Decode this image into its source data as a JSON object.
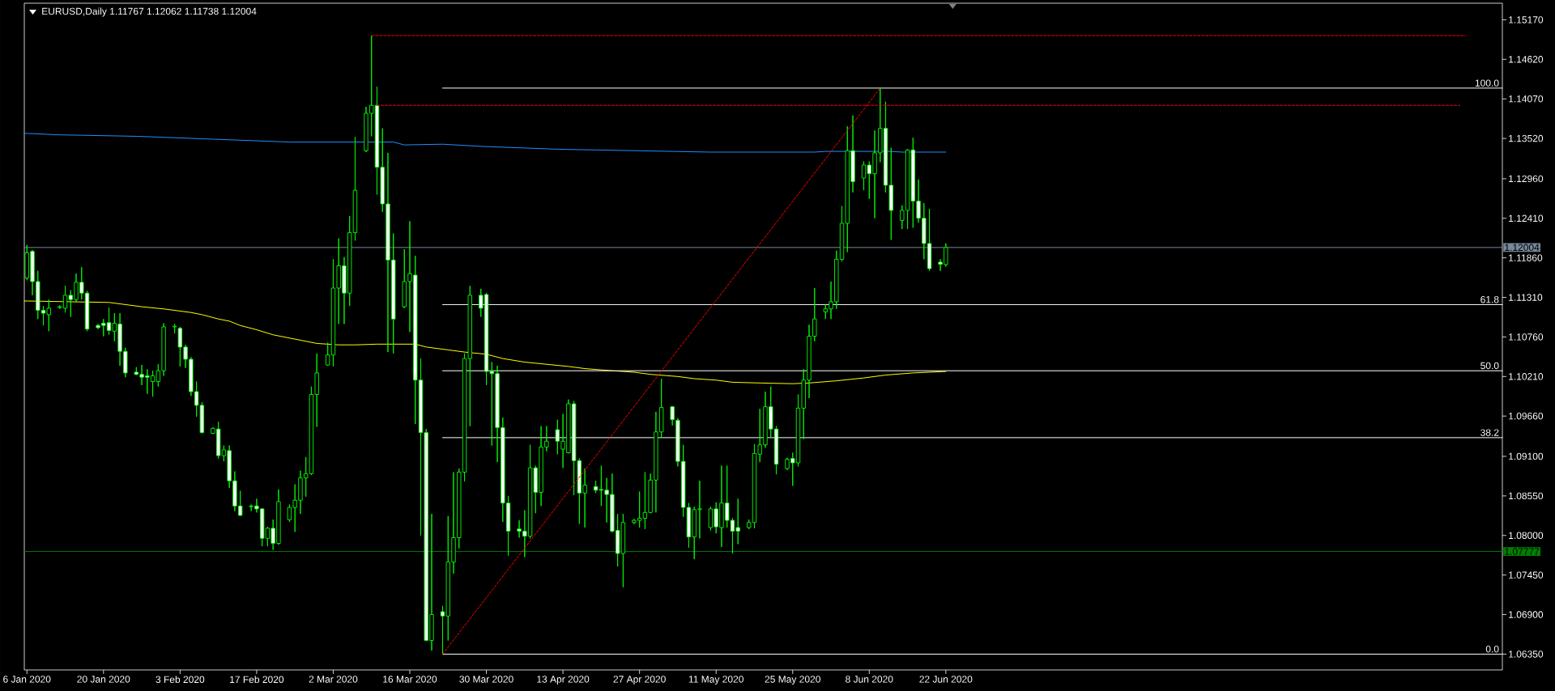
{
  "chart_data": {
    "type": "candlestick",
    "title": "EURUSD,Daily  1.11767 1.12062 1.11738 1.12004",
    "legend": "right",
    "xlim": [
      "2020-01-05T12:30",
      "2020-10-01T18:00"
    ],
    "ylim": [
      1.0613,
      1.154
    ],
    "xticks": [
      {
        "value": "2020-01-06",
        "label": "6 Jan 2020"
      },
      {
        "value": "2020-01-20",
        "label": "20 Jan 2020"
      },
      {
        "value": "2020-02-03",
        "label": "3 Feb 2020"
      },
      {
        "value": "2020-02-17",
        "label": "17 Feb 2020"
      },
      {
        "value": "2020-03-02",
        "label": "2 Mar 2020"
      },
      {
        "value": "2020-03-16",
        "label": "16 Mar 2020"
      },
      {
        "value": "2020-03-30",
        "label": "30 Mar 2020"
      },
      {
        "value": "2020-04-13",
        "label": "13 Apr 2020"
      },
      {
        "value": "2020-04-27",
        "label": "27 Apr 2020"
      },
      {
        "value": "2020-05-11",
        "label": "11 May 2020"
      },
      {
        "value": "2020-05-25",
        "label": "25 May 2020"
      },
      {
        "value": "2020-06-08",
        "label": "8 Jun 2020"
      },
      {
        "value": "2020-06-22",
        "label": "22 Jun 2020"
      }
    ],
    "yticks": [
      {
        "value": 1.1517,
        "label": "1.15170"
      },
      {
        "value": 1.1462,
        "label": "1.14620"
      },
      {
        "value": 1.1407,
        "label": "1.14070"
      },
      {
        "value": 1.1352,
        "label": "1.13520"
      },
      {
        "value": 1.1296,
        "label": "1.12960"
      },
      {
        "value": 1.1241,
        "label": "1.12410"
      },
      {
        "value": 1.1186,
        "label": "1.11860"
      },
      {
        "value": 1.1131,
        "label": "1.11310"
      },
      {
        "value": 1.1076,
        "label": "1.10760"
      },
      {
        "value": 1.1021,
        "label": "1.10210"
      },
      {
        "value": 1.0966,
        "label": "1.09660"
      },
      {
        "value": 1.091,
        "label": "1.09100"
      },
      {
        "value": 1.0855,
        "label": "1.08550"
      },
      {
        "value": 1.08,
        "label": "1.08000"
      },
      {
        "value": 1.0745,
        "label": "1.07450"
      },
      {
        "value": 1.069,
        "label": "1.06900"
      },
      {
        "value": 1.0635,
        "label": "1.06350"
      }
    ],
    "ref_lines": [
      {
        "axis": "y",
        "value": 1.12004,
        "label": "1.12004",
        "color": "#778899"
      },
      {
        "axis": "y",
        "value": 1.07777,
        "label": "1.07777",
        "color": "#008000"
      }
    ],
    "series": [
      {
        "type": "line",
        "color": "#1e90ff",
        "x": [
          "2020-01-05T12:30",
          "2020-01-06",
          "2020-01-12",
          "2020-01-26",
          "2020-02-02",
          "2020-02-09",
          "2020-02-16",
          "2020-02-23",
          "2020-03-13",
          "2020-03-15",
          "2020-03-22",
          "2020-03-29",
          "2020-04-05",
          "2020-04-12",
          "2020-04-19",
          "2020-04-26",
          "2020-05-03",
          "2020-05-10",
          "2020-05-29",
          "2020-05-31",
          "2020-06-12",
          "2020-06-14",
          "2020-06-22"
        ],
        "values": [
          1.1359,
          1.1359,
          1.1357,
          1.1355,
          1.1353,
          1.1351,
          1.1349,
          1.1347,
          1.1347,
          1.1343,
          1.1344,
          1.1341,
          1.1339,
          1.1337,
          1.1336,
          1.1335,
          1.1334,
          1.1333,
          1.1333,
          1.1334,
          1.1334,
          1.1333,
          1.1333
        ]
      },
      {
        "type": "line",
        "color": "#ffff00",
        "x": [
          "2020-01-05T12:30",
          "2020-01-06",
          "2020-01-21",
          "2020-01-23",
          "2020-01-27",
          "2020-01-31",
          "2020-02-05",
          "2020-02-07",
          "2020-02-10",
          "2020-02-12",
          "2020-02-14",
          "2020-02-17",
          "2020-02-20",
          "2020-02-24",
          "2020-02-28",
          "2020-03-03",
          "2020-03-06",
          "2020-03-10",
          "2020-03-17",
          "2020-03-19",
          "2020-03-23",
          "2020-03-26",
          "2020-03-30",
          "2020-04-02",
          "2020-04-06",
          "2020-04-10",
          "2020-04-14",
          "2020-04-17",
          "2020-04-22",
          "2020-04-26",
          "2020-04-29",
          "2020-05-04",
          "2020-05-07",
          "2020-05-11",
          "2020-05-14",
          "2020-05-19",
          "2020-05-25",
          "2020-05-28",
          "2020-06-02",
          "2020-06-07",
          "2020-06-11",
          "2020-06-16",
          "2020-06-19",
          "2020-06-22"
        ],
        "values": [
          1.1126,
          1.1126,
          1.1124,
          1.1122,
          1.1118,
          1.1115,
          1.111,
          1.1107,
          1.1101,
          1.1098,
          1.1092,
          1.1086,
          1.1079,
          1.1073,
          1.1067,
          1.1065,
          1.1065,
          1.1066,
          1.1066,
          1.1062,
          1.1058,
          1.1055,
          1.1052,
          1.1046,
          1.1041,
          1.1038,
          1.1035,
          1.1032,
          1.1029,
          1.1027,
          1.1024,
          1.1021,
          1.1018,
          1.1016,
          1.1013,
          1.1012,
          1.1011,
          1.1012,
          1.1015,
          1.1019,
          1.1023,
          1.1026,
          1.1027,
          1.1028
        ]
      },
      {
        "type": "line",
        "color": "#ff0000",
        "line_style": "dashed",
        "x": [
          "2020-03-22",
          "2020-06-10"
        ],
        "values": [
          1.0635,
          1.1422
        ]
      },
      {
        "type": "line",
        "color": "#ff0000",
        "line_style": "dashed",
        "x": [
          "2020-03-09",
          "2020-09-25"
        ],
        "values": [
          1.1495,
          1.1495
        ]
      },
      {
        "type": "line",
        "color": "#ff0000",
        "line_style": "dashed",
        "x": [
          "2020-03-10",
          "2020-09-24"
        ],
        "values": [
          1.1398,
          1.1398
        ]
      },
      {
        "type": "line",
        "name": "100.0",
        "color": "#ffffff",
        "x": [
          "2020-03-22",
          "2020-10-01T18:00"
        ],
        "values": [
          1.1422,
          1.1422
        ]
      },
      {
        "type": "line",
        "name": "61.8",
        "color": "#ffffff",
        "x": [
          "2020-03-22",
          "2020-10-01T18:00"
        ],
        "values": [
          1.1121,
          1.1121
        ]
      },
      {
        "type": "line",
        "name": "50.0",
        "color": "#ffffff",
        "x": [
          "2020-03-22",
          "2020-10-01T18:00"
        ],
        "values": [
          1.1029,
          1.1029
        ]
      },
      {
        "type": "line",
        "name": "38.2",
        "color": "#ffffff",
        "x": [
          "2020-03-22",
          "2020-10-01T18:00"
        ],
        "values": [
          1.0936,
          1.0936
        ]
      },
      {
        "type": "line",
        "name": "0.0",
        "color": "#ffffff",
        "x": [
          "2020-03-22",
          "2020-10-01T18:00"
        ],
        "values": [
          1.0635,
          1.0635
        ]
      },
      {
        "color": "#00ff00",
        "x": [
          "2020-01-06",
          "2020-01-07",
          "2020-01-08",
          "2020-01-09",
          "2020-01-10",
          "2020-01-12",
          "2020-01-13",
          "2020-01-14",
          "2020-01-15",
          "2020-01-16",
          "2020-01-17",
          "2020-01-19",
          "2020-01-20",
          "2020-01-21",
          "2020-01-22",
          "2020-01-23",
          "2020-01-24",
          "2020-01-26",
          "2020-01-27",
          "2020-01-28",
          "2020-01-29",
          "2020-01-30",
          "2020-01-31",
          "2020-02-02",
          "2020-02-03",
          "2020-02-04",
          "2020-02-05",
          "2020-02-06",
          "2020-02-07",
          "2020-02-09",
          "2020-02-10",
          "2020-02-11",
          "2020-02-12",
          "2020-02-13",
          "2020-02-14",
          "2020-02-16",
          "2020-02-17",
          "2020-02-18",
          "2020-02-19",
          "2020-02-20",
          "2020-02-21",
          "2020-02-23",
          "2020-02-24",
          "2020-02-25",
          "2020-02-26",
          "2020-02-27",
          "2020-02-28",
          "2020-03-01",
          "2020-03-02",
          "2020-03-03",
          "2020-03-04",
          "2020-03-05",
          "2020-03-06",
          "2020-03-08",
          "2020-03-09",
          "2020-03-10",
          "2020-03-11",
          "2020-03-12",
          "2020-03-13",
          "2020-03-15",
          "2020-03-16",
          "2020-03-17",
          "2020-03-18",
          "2020-03-19",
          "2020-03-20",
          "2020-03-22",
          "2020-03-23",
          "2020-03-24",
          "2020-03-25",
          "2020-03-26",
          "2020-03-27",
          "2020-03-29",
          "2020-03-30",
          "2020-03-31",
          "2020-04-01",
          "2020-04-02",
          "2020-04-03",
          "2020-04-05",
          "2020-04-06",
          "2020-04-07",
          "2020-04-08",
          "2020-04-09",
          "2020-04-10",
          "2020-04-12",
          "2020-04-13",
          "2020-04-14",
          "2020-04-15",
          "2020-04-16",
          "2020-04-17",
          "2020-04-19",
          "2020-04-20",
          "2020-04-21",
          "2020-04-22",
          "2020-04-23",
          "2020-04-24",
          "2020-04-26",
          "2020-04-27",
          "2020-04-28",
          "2020-04-29",
          "2020-04-30",
          "2020-05-01",
          "2020-05-03",
          "2020-05-04",
          "2020-05-05",
          "2020-05-06",
          "2020-05-07",
          "2020-05-08",
          "2020-05-10",
          "2020-05-11",
          "2020-05-12",
          "2020-05-13",
          "2020-05-14",
          "2020-05-15",
          "2020-05-17",
          "2020-05-18",
          "2020-05-19",
          "2020-05-20",
          "2020-05-21",
          "2020-05-22",
          "2020-05-24",
          "2020-05-25",
          "2020-05-26",
          "2020-05-27",
          "2020-05-28",
          "2020-05-29",
          "2020-05-31",
          "2020-06-01",
          "2020-06-02",
          "2020-06-03",
          "2020-06-04",
          "2020-06-05",
          "2020-06-07",
          "2020-06-08",
          "2020-06-09",
          "2020-06-10",
          "2020-06-11",
          "2020-06-12",
          "2020-06-14",
          "2020-06-15",
          "2020-06-16",
          "2020-06-17",
          "2020-06-18",
          "2020-06-19",
          "2020-06-21",
          "2020-06-22"
        ],
        "ohlc": [
          [
            1.1158,
            1.1204,
            1.1155,
            1.1193
          ],
          [
            1.1195,
            1.1197,
            1.1134,
            1.1153
          ],
          [
            1.1153,
            1.1168,
            1.1101,
            1.1113
          ],
          [
            1.1113,
            1.1119,
            1.1092,
            1.1109
          ],
          [
            1.1107,
            1.1128,
            1.1084,
            1.1116
          ],
          [
            1.1117,
            1.112,
            1.1115,
            1.1118
          ],
          [
            1.1116,
            1.1147,
            1.111,
            1.1134
          ],
          [
            1.1134,
            1.1141,
            1.1104,
            1.1128
          ],
          [
            1.1128,
            1.1164,
            1.1125,
            1.1152
          ],
          [
            1.1152,
            1.1173,
            1.1128,
            1.1137
          ],
          [
            1.1137,
            1.114,
            1.1084,
            1.1087
          ],
          [
            1.1092,
            1.1094,
            1.1087,
            1.1089
          ],
          [
            1.1095,
            1.1101,
            1.1077,
            1.1092
          ],
          [
            1.1096,
            1.1117,
            1.1079,
            1.1085
          ],
          [
            1.1084,
            1.1109,
            1.107,
            1.1095
          ],
          [
            1.1094,
            1.1109,
            1.1036,
            1.1056
          ],
          [
            1.1056,
            1.1061,
            1.102,
            1.1026
          ],
          [
            1.1027,
            1.1034,
            1.1023,
            1.1024
          ],
          [
            1.1024,
            1.1037,
            1.1009,
            1.102
          ],
          [
            1.1022,
            1.1031,
            1.0997,
            1.102
          ],
          [
            1.1014,
            1.1029,
            1.0993,
            1.1022
          ],
          [
            1.1014,
            1.1038,
            1.1007,
            1.1029
          ],
          [
            1.1029,
            1.1095,
            1.1022,
            1.109
          ],
          [
            1.109,
            1.1094,
            1.1081,
            1.1091
          ],
          [
            1.1088,
            1.109,
            1.1035,
            1.1062
          ],
          [
            1.1062,
            1.1065,
            1.1033,
            1.1045
          ],
          [
            1.1045,
            1.1048,
            1.0994,
            1.1
          ],
          [
            1.1,
            1.1014,
            1.0965,
            1.0981
          ],
          [
            1.0981,
            1.0985,
            1.0942,
            1.0943
          ],
          [
            1.0942,
            1.095,
            1.0941,
            1.0949
          ],
          [
            1.0948,
            1.0958,
            1.0907,
            1.0911
          ],
          [
            1.0911,
            1.0925,
            1.0903,
            1.0919
          ],
          [
            1.0918,
            1.0925,
            1.0866,
            1.0876
          ],
          [
            1.0876,
            1.0889,
            1.0834,
            1.0841
          ],
          [
            1.0841,
            1.0862,
            1.0827,
            1.0828
          ],
          [
            1.084,
            1.0843,
            1.0834,
            1.0841
          ],
          [
            1.0841,
            1.0851,
            1.0832,
            1.0837
          ],
          [
            1.0837,
            1.0838,
            1.0785,
            1.0796
          ],
          [
            1.0796,
            1.0812,
            1.0785,
            1.081
          ],
          [
            1.081,
            1.0822,
            1.078,
            1.0789
          ],
          [
            1.0789,
            1.0864,
            1.0787,
            1.0847
          ],
          [
            1.0822,
            1.0843,
            1.0819,
            1.0839
          ],
          [
            1.0839,
            1.0871,
            1.0805,
            1.0849
          ],
          [
            1.0849,
            1.089,
            1.083,
            1.088
          ],
          [
            1.088,
            1.0909,
            1.0854,
            1.0886
          ],
          [
            1.0886,
            1.1007,
            1.0884,
            1.0996
          ],
          [
            1.0996,
            1.1053,
            1.0951,
            1.1026
          ],
          [
            1.1037,
            1.1068,
            1.1036,
            1.1051
          ],
          [
            1.1051,
            1.1184,
            1.1035,
            1.1144
          ],
          [
            1.1144,
            1.1213,
            1.1094,
            1.1175
          ],
          [
            1.1175,
            1.1187,
            1.1094,
            1.1137
          ],
          [
            1.1137,
            1.1244,
            1.1119,
            1.1221
          ],
          [
            1.1221,
            1.1354,
            1.121,
            1.128
          ],
          [
            1.1335,
            1.1396,
            1.1333,
            1.1387
          ],
          [
            1.1387,
            1.1495,
            1.1355,
            1.1398
          ],
          [
            1.1398,
            1.1424,
            1.1274,
            1.1312
          ],
          [
            1.1312,
            1.1366,
            1.125,
            1.1261
          ],
          [
            1.1261,
            1.1332,
            1.1055,
            1.1183
          ],
          [
            1.1183,
            1.122,
            1.1053,
            1.1101
          ],
          [
            1.1118,
            1.1198,
            1.1116,
            1.1153
          ],
          [
            1.1153,
            1.1237,
            1.1083,
            1.1164
          ],
          [
            1.1162,
            1.1189,
            1.0955,
            1.1016
          ],
          [
            1.1016,
            1.1046,
            1.08,
            1.0943
          ],
          [
            1.0943,
            1.0948,
            1.0653,
            1.0654
          ],
          [
            1.0654,
            1.083,
            1.064,
            1.069
          ],
          [
            1.0694,
            1.0702,
            1.0635,
            1.0688
          ],
          [
            1.0688,
            1.0827,
            1.0654,
            1.0763
          ],
          [
            1.0763,
            1.0888,
            1.0747,
            1.0797
          ],
          [
            1.0797,
            1.0893,
            1.0782,
            1.0888
          ],
          [
            1.0888,
            1.1053,
            1.0875,
            1.1046
          ],
          [
            1.1046,
            1.1147,
            1.0952,
            1.1134
          ],
          [
            1.1134,
            1.1143,
            1.1104,
            1.1116
          ],
          [
            1.1135,
            1.1137,
            1.1009,
            1.1028
          ],
          [
            1.1028,
            1.1041,
            1.0925,
            1.1025
          ],
          [
            1.1025,
            1.1036,
            1.0902,
            1.095
          ],
          [
            1.095,
            1.0964,
            1.0819,
            1.0845
          ],
          [
            1.0845,
            1.0855,
            1.0772,
            1.0806
          ],
          [
            1.0809,
            1.0821,
            1.0797,
            1.0806
          ],
          [
            1.0806,
            1.0835,
            1.077,
            1.0799
          ],
          [
            1.0799,
            1.0926,
            1.0796,
            1.0894
          ],
          [
            1.0894,
            1.0897,
            1.0831,
            1.086
          ],
          [
            1.086,
            1.0952,
            1.0841,
            1.0923
          ],
          [
            1.0923,
            1.0952,
            1.0917,
            1.0931
          ],
          [
            1.0947,
            1.0961,
            1.0913,
            1.0931
          ],
          [
            1.092,
            1.0969,
            1.0894,
            1.0931
          ],
          [
            1.0915,
            1.0989,
            1.0914,
            1.0983
          ],
          [
            1.0983,
            1.0987,
            1.0856,
            1.0904
          ],
          [
            1.0904,
            1.0907,
            1.0816,
            1.0859
          ],
          [
            1.0859,
            1.0893,
            1.0811,
            1.087
          ],
          [
            1.0868,
            1.0876,
            1.0859,
            1.0863
          ],
          [
            1.0864,
            1.0897,
            1.0841,
            1.0863
          ],
          [
            1.0863,
            1.088,
            1.0818,
            1.0857
          ],
          [
            1.0857,
            1.0886,
            1.0804,
            1.0806
          ],
          [
            1.0807,
            1.083,
            1.0757,
            1.0775
          ],
          [
            1.0775,
            1.083,
            1.0728,
            1.0818
          ],
          [
            1.0818,
            1.0823,
            1.0816,
            1.0821
          ],
          [
            1.0821,
            1.0861,
            1.0811,
            1.0824
          ],
          [
            1.0824,
            1.0888,
            1.0809,
            1.0832
          ],
          [
            1.0832,
            1.0886,
            1.0831,
            1.0877
          ],
          [
            1.0877,
            1.0972,
            1.0832,
            1.0944
          ],
          [
            1.0944,
            1.1018,
            1.0936,
            1.0978
          ],
          [
            1.0979,
            1.098,
            1.0953,
            1.0961
          ],
          [
            1.096,
            1.0963,
            1.0896,
            1.0903
          ],
          [
            1.0903,
            1.0926,
            1.0826,
            1.0839
          ],
          [
            1.0839,
            1.0845,
            1.0783,
            1.0798
          ],
          [
            1.0798,
            1.084,
            1.0767,
            1.0836
          ],
          [
            1.0836,
            1.0876,
            1.0796,
            1.0837
          ],
          [
            1.0811,
            1.084,
            1.0807,
            1.0837
          ],
          [
            1.0837,
            1.0846,
            1.0803,
            1.0812
          ],
          [
            1.0811,
            1.0897,
            1.0784,
            1.0845
          ],
          [
            1.0845,
            1.0897,
            1.0811,
            1.0821
          ],
          [
            1.0821,
            1.0824,
            1.0775,
            1.0806
          ],
          [
            1.0811,
            1.0851,
            1.0788,
            1.0806
          ],
          [
            1.0811,
            1.0822,
            1.0809,
            1.0818
          ],
          [
            1.0818,
            1.0927,
            1.081,
            1.0914
          ],
          [
            1.0913,
            1.0976,
            1.0902,
            1.0926
          ],
          [
            1.0926,
            1.1,
            1.0922,
            1.0979
          ],
          [
            1.0979,
            1.1007,
            1.0937,
            1.0948
          ],
          [
            1.0948,
            1.0952,
            1.0885,
            1.0899
          ],
          [
            1.0893,
            1.0908,
            1.0891,
            1.0906
          ],
          [
            1.0907,
            1.0915,
            1.0869,
            1.0901
          ],
          [
            1.0901,
            1.0996,
            1.0896,
            1.0977
          ],
          [
            1.0977,
            1.1031,
            1.0934,
            1.1016
          ],
          [
            1.1016,
            1.1093,
            1.0991,
            1.1077
          ],
          [
            1.1077,
            1.1144,
            1.107,
            1.1101
          ],
          [
            1.1111,
            1.1121,
            1.1101,
            1.1115
          ],
          [
            1.1115,
            1.1153,
            1.1101,
            1.1125
          ],
          [
            1.1125,
            1.1196,
            1.1115,
            1.1184
          ],
          [
            1.1184,
            1.1258,
            1.1181,
            1.1234
          ],
          [
            1.1234,
            1.1369,
            1.1194,
            1.1335
          ],
          [
            1.1335,
            1.1384,
            1.1277,
            1.1292
          ],
          [
            1.1297,
            1.132,
            1.128,
            1.1315
          ],
          [
            1.1315,
            1.132,
            1.1268,
            1.1303
          ],
          [
            1.1303,
            1.1363,
            1.1241,
            1.1332
          ],
          [
            1.1332,
            1.1422,
            1.1319,
            1.1366
          ],
          [
            1.1366,
            1.1403,
            1.1277,
            1.1287
          ],
          [
            1.1287,
            1.1339,
            1.1211,
            1.1252
          ],
          [
            1.1238,
            1.1259,
            1.1226,
            1.1252
          ],
          [
            1.1252,
            1.1337,
            1.1226,
            1.1336
          ],
          [
            1.1336,
            1.1353,
            1.1228,
            1.1265
          ],
          [
            1.1265,
            1.1295,
            1.1235,
            1.1241
          ],
          [
            1.1241,
            1.1262,
            1.1184,
            1.1206
          ],
          [
            1.1206,
            1.1254,
            1.1168,
            1.1171
          ],
          [
            1.118,
            1.1184,
            1.1168,
            1.1177
          ],
          [
            1.11767,
            1.12062,
            1.11738,
            1.12004
          ]
        ]
      }
    ]
  }
}
